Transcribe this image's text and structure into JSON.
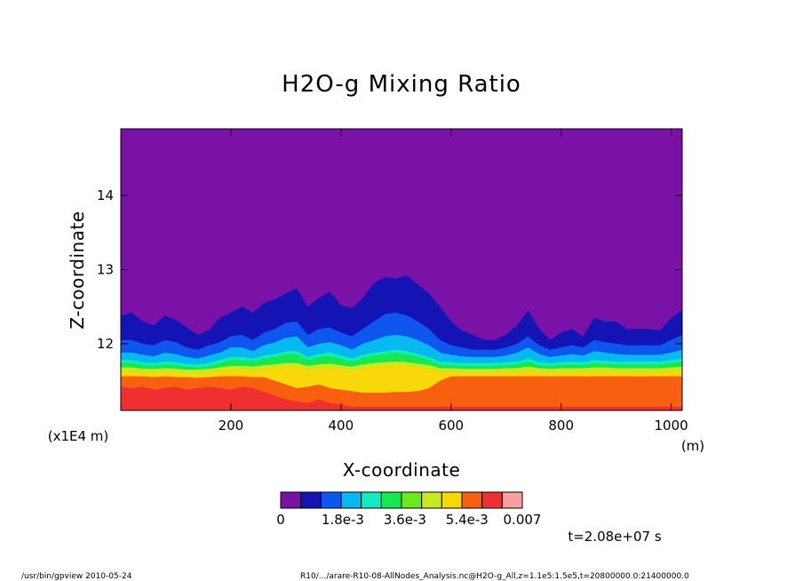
{
  "chart_data": {
    "type": "heatmap",
    "title": "H2O-g Mixing Ratio",
    "xlabel": "X-coordinate",
    "ylabel": "Z-coordinate",
    "x_unit": "(m)",
    "y_scale_note": "(x1E4 m)",
    "xlim": [
      0,
      1020
    ],
    "ylim": [
      11.1,
      14.9
    ],
    "x_ticks": [
      200,
      400,
      600,
      800,
      1000
    ],
    "y_ticks": [
      12,
      13,
      14
    ],
    "colorbar": {
      "levels": [
        0,
        0.00064,
        0.00127,
        0.0019,
        0.00254,
        0.00318,
        0.00382,
        0.00445,
        0.00509,
        0.00572,
        0.00636,
        0.007
      ],
      "colors": [
        "#7a12a8",
        "#1414b4",
        "#0f55f0",
        "#08b8f0",
        "#10ecc0",
        "#18e850",
        "#6ce81e",
        "#c8e820",
        "#f8d808",
        "#f86010",
        "#f03030",
        "#f8a0a0"
      ],
      "tick_labels": [
        "0",
        "1.8e-3",
        "3.6e-3",
        "5.4e-3",
        "0.007"
      ]
    },
    "bands": {
      "x": [
        0,
        20,
        40,
        60,
        80,
        100,
        120,
        140,
        160,
        180,
        200,
        220,
        240,
        260,
        280,
        300,
        320,
        340,
        360,
        380,
        400,
        420,
        440,
        460,
        480,
        500,
        520,
        540,
        560,
        580,
        600,
        620,
        640,
        660,
        680,
        700,
        720,
        740,
        760,
        780,
        800,
        820,
        840,
        860,
        880,
        900,
        920,
        940,
        960,
        980,
        1000,
        1020
      ],
      "z_top": [
        12.38,
        12.42,
        12.3,
        12.25,
        12.38,
        12.32,
        12.22,
        12.12,
        12.18,
        12.35,
        12.42,
        12.5,
        12.42,
        12.55,
        12.6,
        12.68,
        12.75,
        12.5,
        12.62,
        12.7,
        12.52,
        12.48,
        12.62,
        12.82,
        12.9,
        12.88,
        12.92,
        12.8,
        12.68,
        12.5,
        12.3,
        12.18,
        12.12,
        12.05,
        12.05,
        12.12,
        12.25,
        12.45,
        12.2,
        12.05,
        12.15,
        12.2,
        12.1,
        12.35,
        12.3,
        12.3,
        12.2,
        12.2,
        12.2,
        12.18,
        12.35,
        12.45
      ],
      "z_blue": [
        12.05,
        12.05,
        12.0,
        11.98,
        12.05,
        12.02,
        11.95,
        11.92,
        11.98,
        12.02,
        12.1,
        12.12,
        12.05,
        12.15,
        12.2,
        12.28,
        12.3,
        12.12,
        12.2,
        12.22,
        12.15,
        12.1,
        12.2,
        12.3,
        12.4,
        12.42,
        12.38,
        12.3,
        12.2,
        12.05,
        11.98,
        11.95,
        11.92,
        11.92,
        11.92,
        11.95,
        12.0,
        12.1,
        11.98,
        11.92,
        11.95,
        11.98,
        11.95,
        12.05,
        12.02,
        12.0,
        11.98,
        11.98,
        11.98,
        11.98,
        12.05,
        12.12
      ],
      "z_cyan": [
        11.88,
        11.88,
        11.85,
        11.83,
        11.88,
        11.86,
        11.82,
        11.8,
        11.84,
        11.88,
        11.95,
        11.95,
        11.9,
        11.98,
        12.02,
        12.08,
        12.1,
        11.95,
        12.0,
        12.02,
        11.98,
        11.92,
        12.0,
        12.05,
        12.1,
        12.12,
        12.1,
        12.05,
        11.98,
        11.88,
        11.85,
        11.83,
        11.82,
        11.82,
        11.82,
        11.84,
        11.88,
        11.95,
        11.86,
        11.82,
        11.84,
        11.86,
        11.84,
        11.9,
        11.88,
        11.86,
        11.85,
        11.85,
        11.85,
        11.85,
        11.88,
        11.92
      ],
      "z_green": [
        11.78,
        11.78,
        11.75,
        11.74,
        11.76,
        11.75,
        11.73,
        11.72,
        11.74,
        11.78,
        11.82,
        11.82,
        11.8,
        11.84,
        11.86,
        11.9,
        11.9,
        11.82,
        11.86,
        11.88,
        11.84,
        11.8,
        11.85,
        11.88,
        11.9,
        11.92,
        11.9,
        11.86,
        11.82,
        11.76,
        11.75,
        11.74,
        11.74,
        11.74,
        11.74,
        11.75,
        11.76,
        11.8,
        11.75,
        11.74,
        11.75,
        11.76,
        11.75,
        11.78,
        11.77,
        11.76,
        11.76,
        11.76,
        11.76,
        11.76,
        11.78,
        11.8
      ],
      "z_yellowgreen": [
        11.68,
        11.68,
        11.66,
        11.66,
        11.67,
        11.66,
        11.65,
        11.65,
        11.66,
        11.68,
        11.7,
        11.7,
        11.69,
        11.71,
        11.72,
        11.74,
        11.74,
        11.7,
        11.72,
        11.73,
        11.71,
        11.69,
        11.72,
        11.74,
        11.75,
        11.76,
        11.75,
        11.73,
        11.71,
        11.67,
        11.67,
        11.66,
        11.66,
        11.66,
        11.66,
        11.67,
        11.67,
        11.69,
        11.67,
        11.66,
        11.67,
        11.67,
        11.67,
        11.68,
        11.68,
        11.67,
        11.67,
        11.67,
        11.67,
        11.67,
        11.68,
        11.69
      ],
      "z_orange": [
        11.56,
        11.56,
        11.56,
        11.55,
        11.56,
        11.55,
        11.55,
        11.54,
        11.55,
        11.56,
        11.56,
        11.56,
        11.55,
        11.55,
        11.5,
        11.45,
        11.4,
        11.42,
        11.45,
        11.4,
        11.38,
        11.36,
        11.34,
        11.34,
        11.34,
        11.35,
        11.35,
        11.36,
        11.4,
        11.5,
        11.56,
        11.56,
        11.56,
        11.56,
        11.56,
        11.56,
        11.56,
        11.56,
        11.56,
        11.56,
        11.56,
        11.56,
        11.56,
        11.56,
        11.56,
        11.56,
        11.56,
        11.56,
        11.56,
        11.56,
        11.56,
        11.56
      ],
      "z_red": [
        11.42,
        11.4,
        11.42,
        11.38,
        11.4,
        11.42,
        11.38,
        11.4,
        11.42,
        11.4,
        11.38,
        11.42,
        11.4,
        11.35,
        11.3,
        11.25,
        11.22,
        11.2,
        11.25,
        11.2,
        11.18,
        11.15,
        11.15,
        11.15,
        11.15,
        11.15,
        11.15,
        11.15,
        11.15,
        11.15,
        11.15,
        11.15,
        11.15,
        11.15,
        11.15,
        11.15,
        11.15,
        11.15,
        11.15,
        11.15,
        11.15,
        11.15,
        11.15,
        11.15,
        11.15,
        11.15,
        11.15,
        11.15,
        11.15,
        11.15,
        11.15,
        11.15
      ]
    },
    "annotation": "t=2.08e+07 s"
  },
  "footer": {
    "left": "/usr/bin/gpview  2010-05-24",
    "right": "R10/.../arare-R10-08-AllNodes_Analysis.nc@H2O-g_All,z=1.1e5:1.5e5,t=20800000.0:21400000.0"
  }
}
